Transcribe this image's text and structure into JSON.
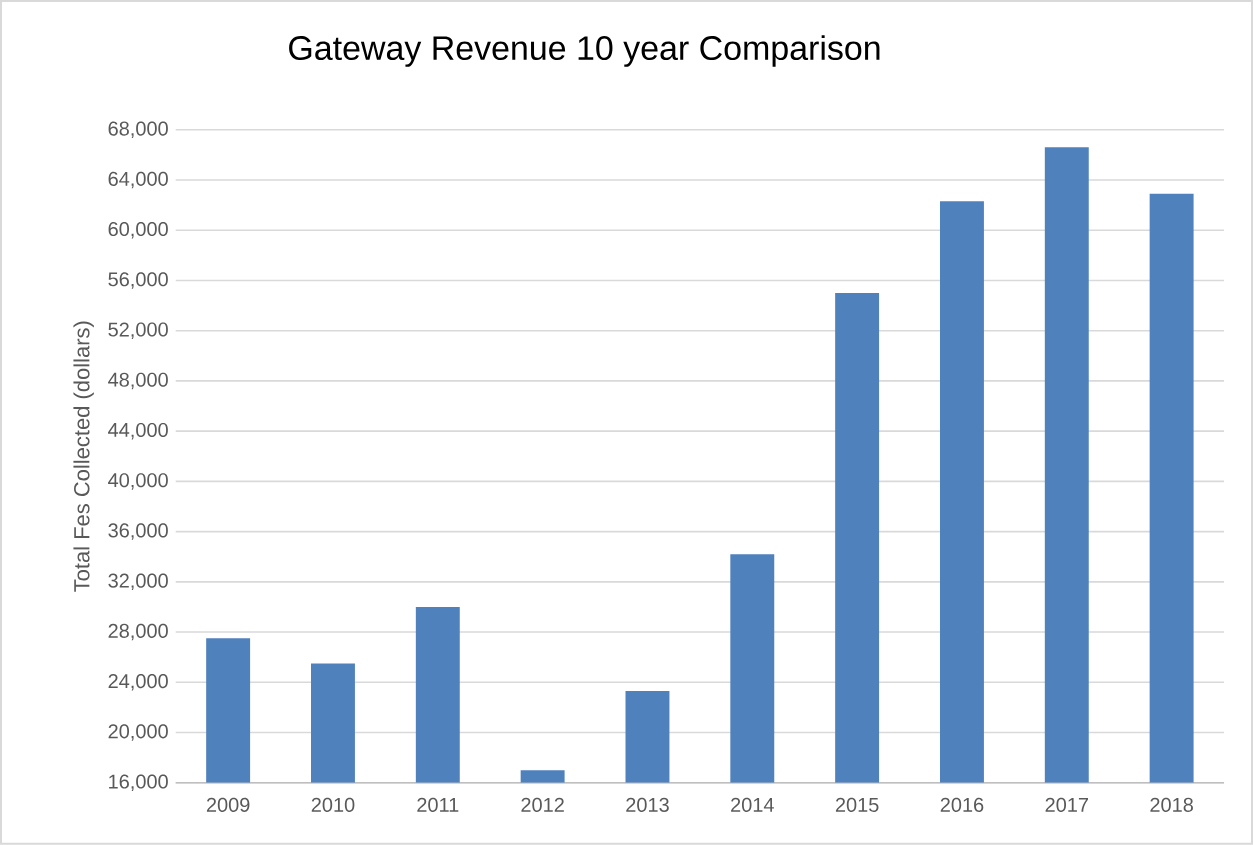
{
  "chart_data": {
    "type": "bar",
    "title": "Gateway Revenue 10 year Comparison",
    "ylabel": "Total Fes Collected (dollars)",
    "categories": [
      "2009",
      "2010",
      "2011",
      "2012",
      "2013",
      "2014",
      "2015",
      "2016",
      "2017",
      "2018"
    ],
    "values": [
      27500,
      25500,
      30000,
      17000,
      23300,
      34200,
      55000,
      62300,
      66600,
      62900
    ],
    "color": "#4f81bd",
    "ylim": [
      16000,
      68000
    ],
    "yticks": [
      {
        "value": 16000,
        "label": "16,000"
      },
      {
        "value": 20000,
        "label": "20,000"
      },
      {
        "value": 24000,
        "label": "24,000"
      },
      {
        "value": 28000,
        "label": "28,000"
      },
      {
        "value": 32000,
        "label": "32,000"
      },
      {
        "value": 36000,
        "label": "36,000"
      },
      {
        "value": 40000,
        "label": "40,000"
      },
      {
        "value": 44000,
        "label": "44,000"
      },
      {
        "value": 48000,
        "label": "48,000"
      },
      {
        "value": 52000,
        "label": "52,000"
      },
      {
        "value": 56000,
        "label": "56,000"
      },
      {
        "value": 60000,
        "label": "60,000"
      },
      {
        "value": 64000,
        "label": "64,000"
      },
      {
        "value": 68000,
        "label": "68,000"
      }
    ],
    "grid": "y"
  }
}
